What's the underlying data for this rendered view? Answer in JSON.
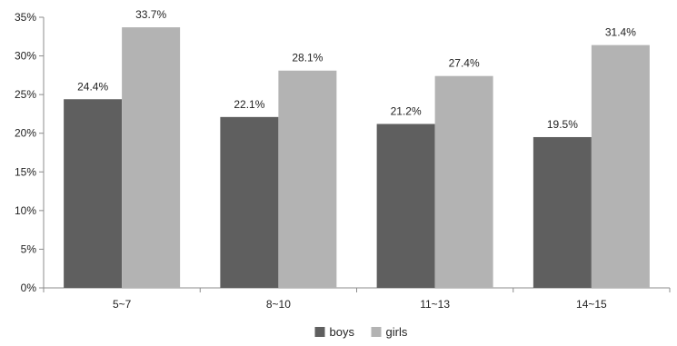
{
  "chart_data": {
    "type": "bar",
    "title": "",
    "xlabel": "",
    "ylabel": "",
    "categories": [
      "5~7",
      "8~10",
      "11~13",
      "14~15"
    ],
    "series": [
      {
        "name": "boys",
        "color": "#5f5f5f",
        "values": [
          24.4,
          22.1,
          21.2,
          19.5
        ],
        "labels": [
          "24.4%",
          "22.1%",
          "21.2%",
          "19.5%"
        ]
      },
      {
        "name": "girls",
        "color": "#b3b3b3",
        "values": [
          33.7,
          28.1,
          27.4,
          31.4
        ],
        "labels": [
          "33.7%",
          "28.1%",
          "27.4%",
          "31.4%"
        ]
      }
    ],
    "ylim": [
      0,
      35
    ],
    "yticks": [
      0,
      5,
      10,
      15,
      20,
      25,
      30,
      35
    ],
    "ytick_labels": [
      "0%",
      "5%",
      "10%",
      "15%",
      "20%",
      "25%",
      "30%",
      "35%"
    ],
    "grid": false,
    "legend_position": "bottom-center"
  }
}
